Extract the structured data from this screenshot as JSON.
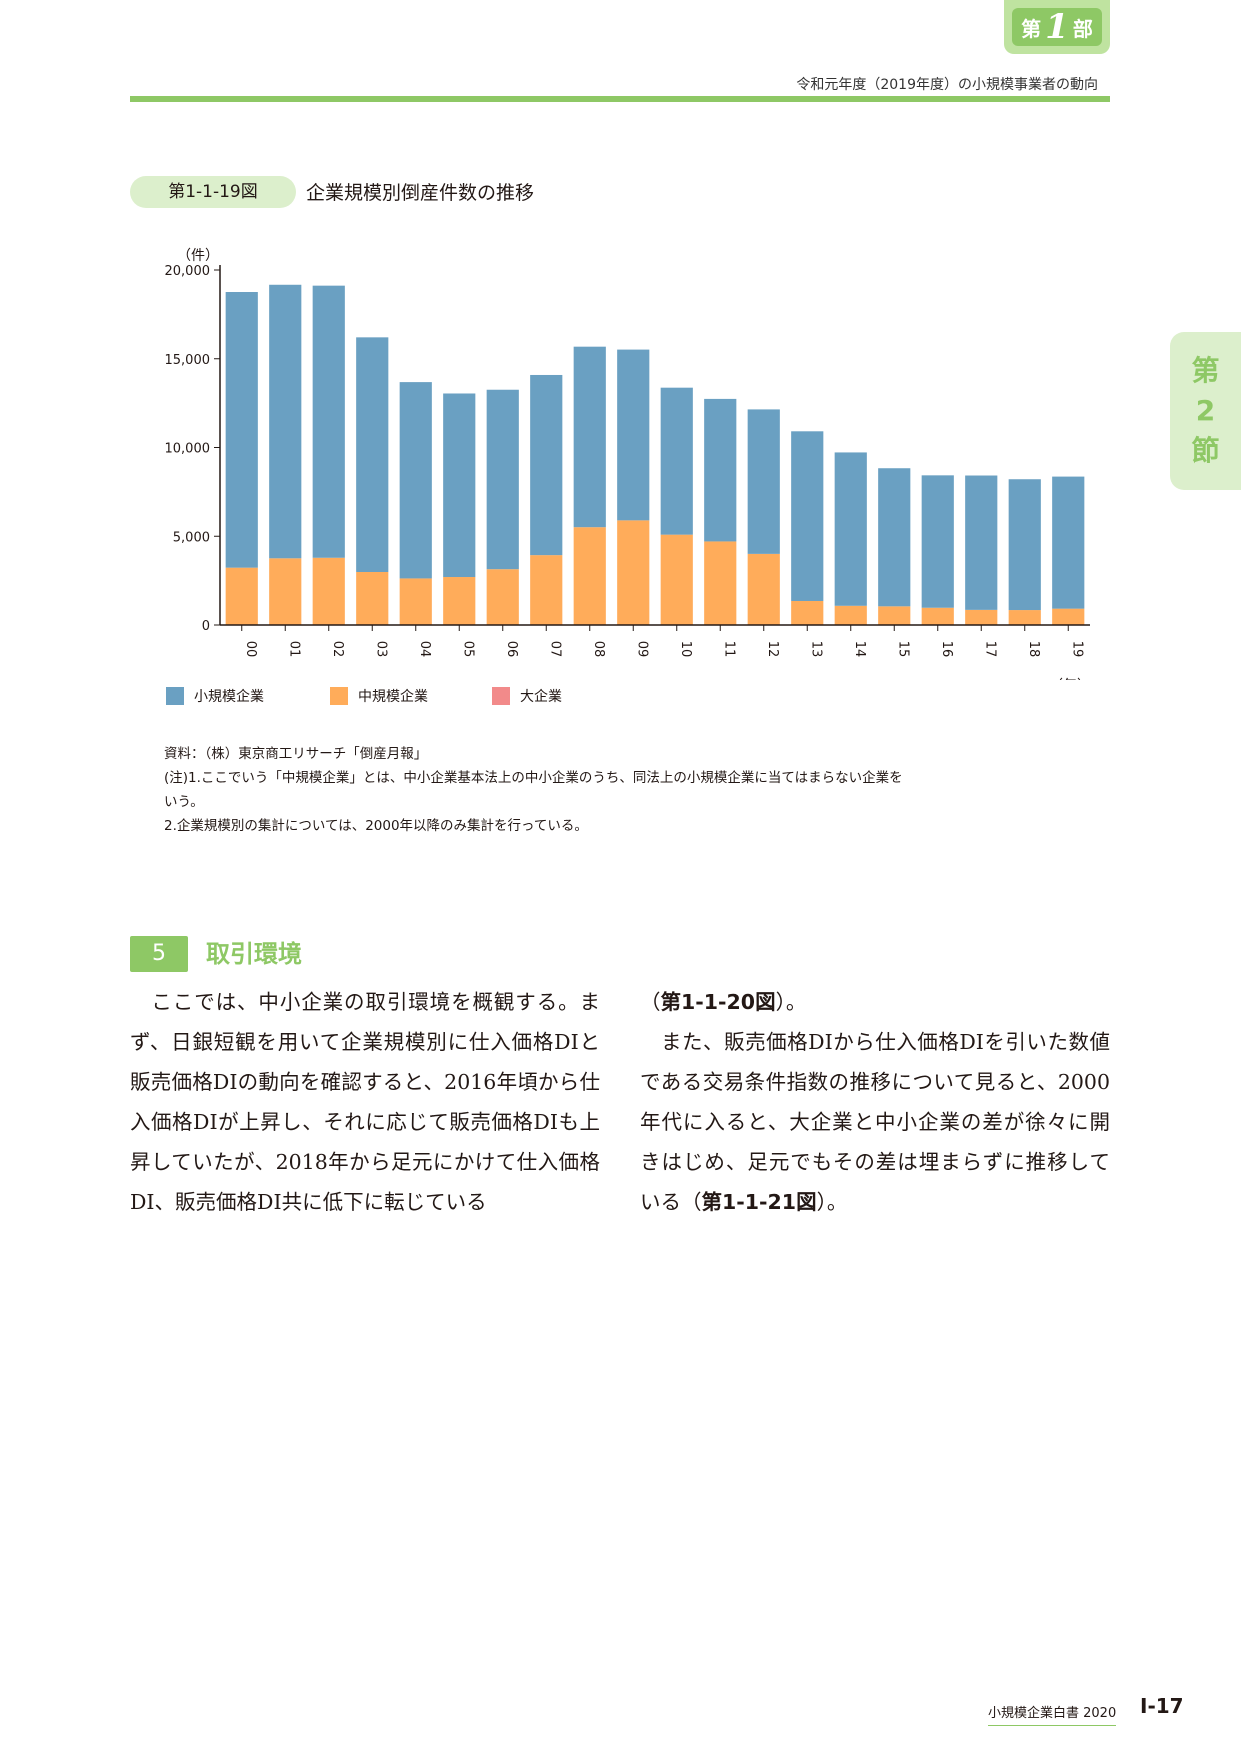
{
  "header": {
    "part_tab_pre": "第",
    "part_tab_num": "1",
    "part_tab_post": "部",
    "running_title": "令和元年度（2019年度）の小規模事業者の動向",
    "section_tab": [
      "第",
      "2",
      "節"
    ]
  },
  "figure": {
    "label": "第1-1-19図",
    "title": "企業規模別倒産件数の推移"
  },
  "chart_data": {
    "type": "bar",
    "stacked": true,
    "y_unit": "（件）",
    "x_unit": "（年）",
    "ylim": [
      0,
      20000
    ],
    "yticks": [
      0,
      5000,
      10000,
      15000,
      20000
    ],
    "ytick_labels": [
      "0",
      "5,000",
      "10,000",
      "15,000",
      "20,000"
    ],
    "categories": [
      "00",
      "01",
      "02",
      "03",
      "04",
      "05",
      "06",
      "07",
      "08",
      "09",
      "10",
      "11",
      "12",
      "13",
      "14",
      "15",
      "16",
      "17",
      "18",
      "19"
    ],
    "series": [
      {
        "name": "大企業",
        "color": "#f28a8a",
        "values": [
          10,
          8,
          8,
          6,
          4,
          3,
          4,
          6,
          20,
          16,
          10,
          8,
          6,
          3,
          2,
          2,
          2,
          2,
          2,
          1
        ]
      },
      {
        "name": "中規模企業",
        "color": "#ffac5a",
        "values": [
          3220,
          3750,
          3780,
          2980,
          2620,
          2700,
          3140,
          3930,
          5490,
          5880,
          5080,
          4700,
          4000,
          1350,
          1080,
          1050,
          970,
          850,
          840,
          920
        ]
      },
      {
        "name": "小規模企業",
        "color": "#6aa0c2",
        "values": [
          15530,
          15410,
          15330,
          13220,
          11060,
          10340,
          10110,
          10150,
          10170,
          9620,
          8280,
          8030,
          8140,
          9560,
          8640,
          7780,
          7460,
          7570,
          7370,
          7440
        ]
      }
    ],
    "legend_order": [
      "小規模企業",
      "中規模企業",
      "大企業"
    ],
    "legend_placement": "bottom",
    "grid": false
  },
  "notes": {
    "source": "資料：（株）東京商工リサーチ「倒産月報」",
    "note1a": "(注)1.ここでいう「中規模企業」とは、中小企業基本法上の中小企業のうち、同法上の小規模企業に当てはまらない企業を",
    "note1b": "いう。",
    "note2": "2.企業規模別の集計については、2000年以降のみ集計を行っている。"
  },
  "section": {
    "number": "5",
    "title": "取引環境"
  },
  "body": {
    "left_para": "　ここでは、中小企業の取引環境を概観する。まず、日銀短観を用いて企業規模別に仕入価格DIと販売価格DIの動向を確認すると、2016年頃から仕入価格DIが上昇し、それに応じて販売価格DIも上昇していたが、2018年から足元にかけて仕入価格DI、販売価格DI共に低下に転じている",
    "right_p1_open": "（",
    "right_p1_ref": "第1-1-20図",
    "right_p1_close": "）。",
    "right_p2_text": "　また、販売価格DIから仕入価格DIを引いた数値である交易条件指数の推移について見ると、2000年代に入ると、大企業と中小企業の差が徐々に開きはじめ、足元でもその差は埋まらずに推移している（",
    "right_p2_ref": "第1-1-21図",
    "right_p2_close": "）。"
  },
  "footer": {
    "book_title": "小規模企業白書  2020",
    "page_number": "Ⅰ-17"
  }
}
